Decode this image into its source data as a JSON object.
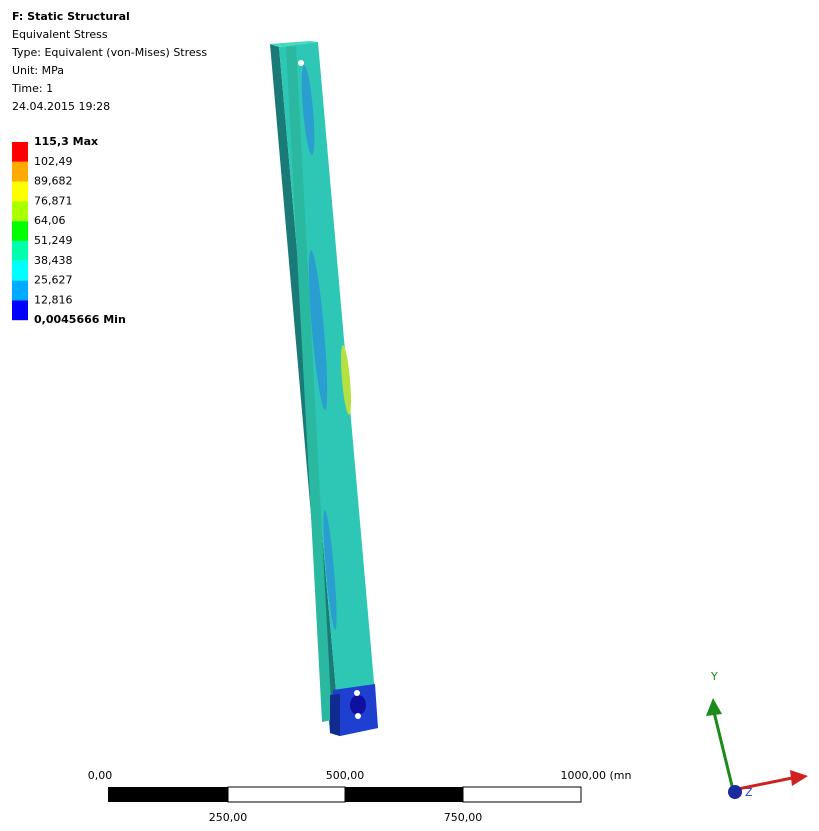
{
  "header": {
    "title": "F: Static Structural",
    "lines": [
      "Equivalent Stress",
      "Type: Equivalent (von-Mises) Stress",
      "Unit: MPa",
      "Time: 1",
      "24.04.2015 19:28"
    ]
  },
  "legend": {
    "labels": [
      "115,3 Max",
      "102,49",
      "89,682",
      "76,871",
      "64,06",
      "51,249",
      "38,438",
      "25,627",
      "12,816",
      "0,0045666 Min"
    ],
    "colors": [
      "#ff0000",
      "#ffaa00",
      "#ffff00",
      "#aaff00",
      "#00ff00",
      "#00ffaa",
      "#00ffff",
      "#00aaff",
      "#0000ff"
    ]
  },
  "scale_bar": {
    "top_labels": [
      "0,00",
      "500,00",
      "1000,00 (mn"
    ],
    "bottom_labels": [
      "250,00",
      "750,00"
    ]
  },
  "triad": {
    "y_label": "Y",
    "z_label": "Z"
  }
}
